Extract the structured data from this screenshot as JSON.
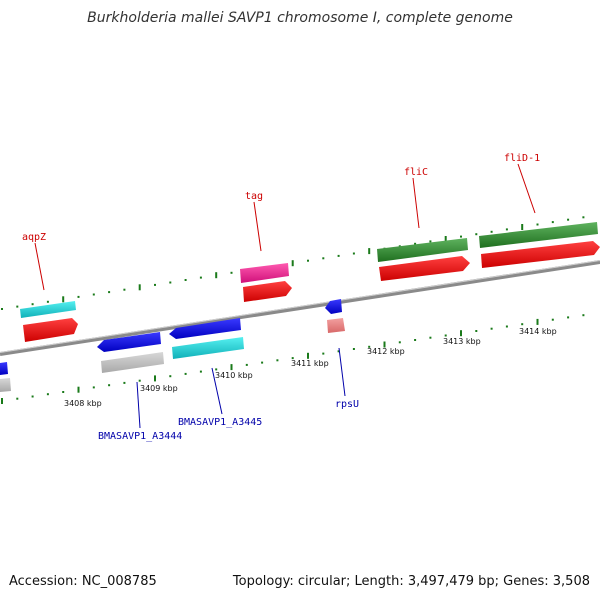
{
  "title": "Burkholderia mallei SAVP1 chromosome I, complete genome",
  "footer": {
    "accession": "Accession: NC_008785",
    "summary": "Topology: circular; Length: 3,497,479 bp; Genes: 3,508"
  },
  "colors": {
    "label_red": "#cc0000",
    "label_blue": "#0000aa",
    "backbone": "#808080",
    "tick": "#1a7a1a"
  },
  "scale_labels": [
    {
      "id": "3408",
      "text": "3408 kbp"
    },
    {
      "id": "3409",
      "text": "3409 kbp"
    },
    {
      "id": "3410",
      "text": "3410 kbp"
    },
    {
      "id": "3411",
      "text": "3411 kbp"
    },
    {
      "id": "3412",
      "text": "3412 kbp"
    },
    {
      "id": "3413",
      "text": "3413 kbp"
    },
    {
      "id": "3414",
      "text": "3414 kbp"
    }
  ],
  "gene_labels": [
    {
      "id": "aqpZ",
      "text": "aqpZ"
    },
    {
      "id": "tag",
      "text": "tag"
    },
    {
      "id": "fliC",
      "text": "fliC"
    },
    {
      "id": "fliD-1",
      "text": "fliD-1"
    },
    {
      "id": "rpsU",
      "text": "rpsU"
    },
    {
      "id": "A3444",
      "text": "BMASAVP1_A3444"
    },
    {
      "id": "A3445",
      "text": "BMASAVP1_A3445"
    }
  ]
}
